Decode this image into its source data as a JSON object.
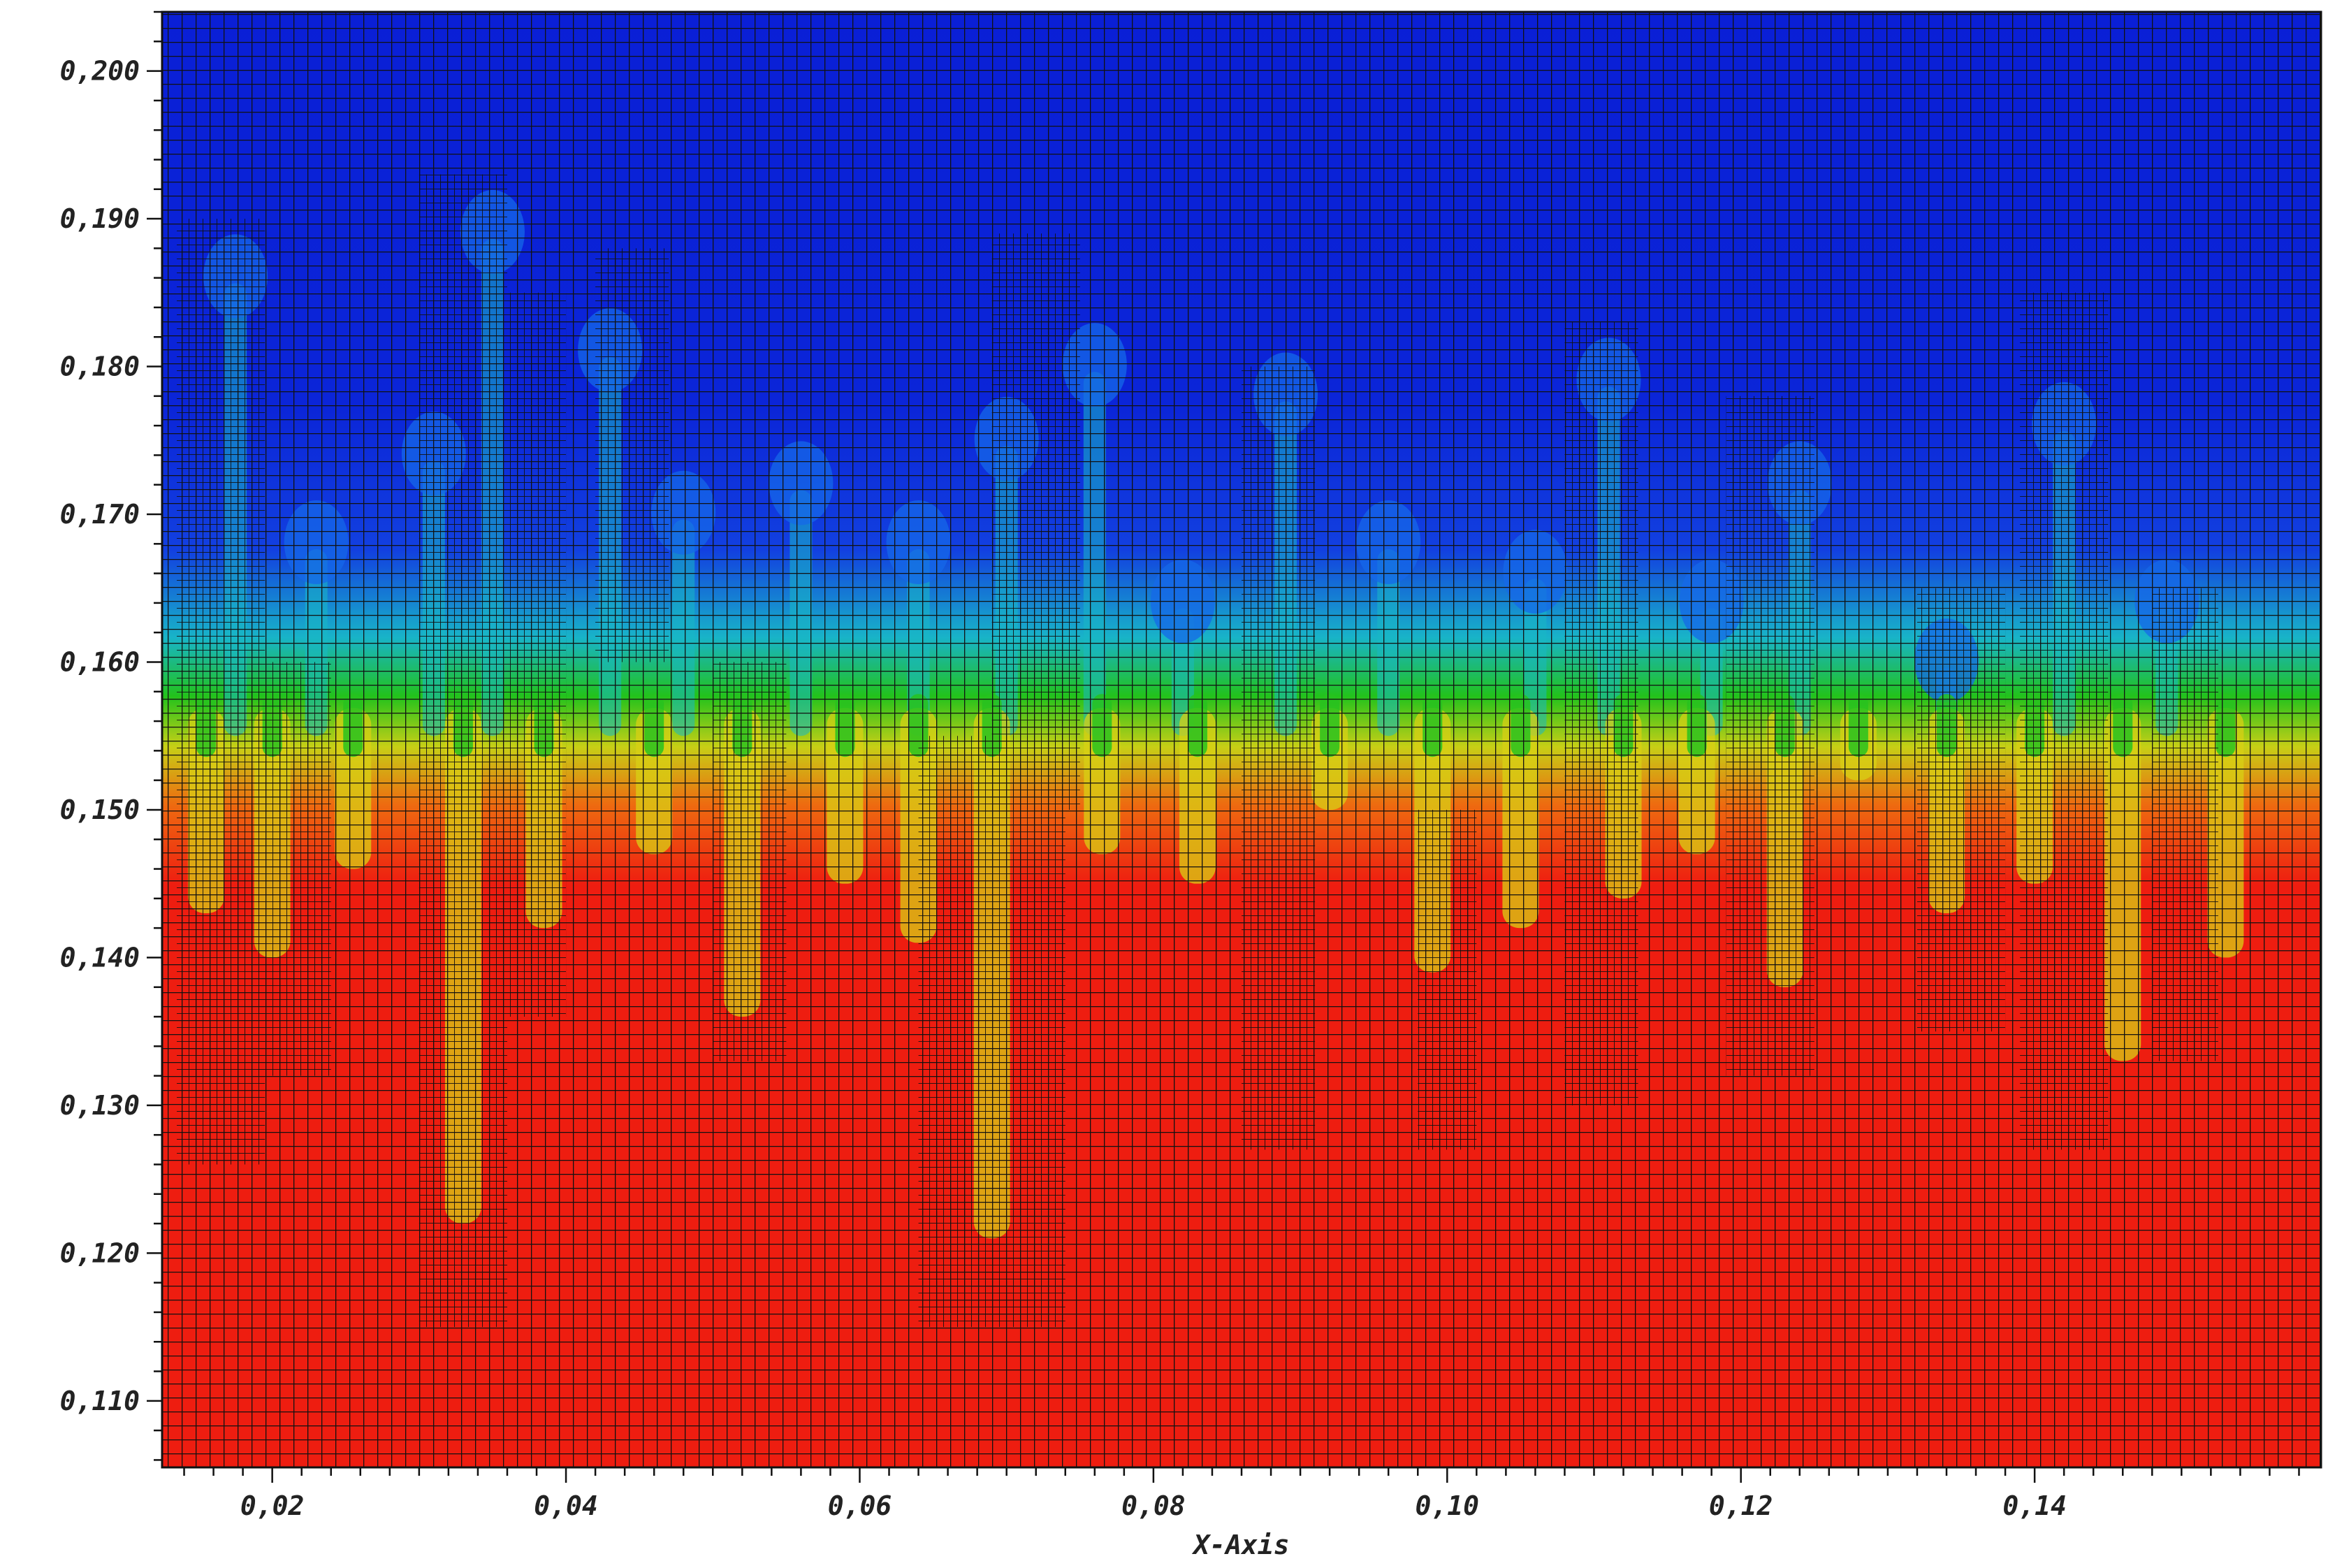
{
  "chart_data": {
    "type": "heatmap",
    "title": "",
    "xlabel": "X-Axis",
    "ylabel": "",
    "xlim": [
      0.0125,
      0.1595
    ],
    "ylim": [
      0.1055,
      0.204
    ],
    "x_ticks": [
      {
        "value": 0.02,
        "label": "0,02"
      },
      {
        "value": 0.04,
        "label": "0,04"
      },
      {
        "value": 0.06,
        "label": "0,06"
      },
      {
        "value": 0.08,
        "label": "0,08"
      },
      {
        "value": 0.1,
        "label": "0,10"
      },
      {
        "value": 0.12,
        "label": "0,12"
      },
      {
        "value": 0.14,
        "label": "0,14"
      }
    ],
    "y_ticks": [
      {
        "value": 0.11,
        "label": "0,110"
      },
      {
        "value": 0.12,
        "label": "0,120"
      },
      {
        "value": 0.13,
        "label": "0,130"
      },
      {
        "value": 0.14,
        "label": "0,140"
      },
      {
        "value": 0.15,
        "label": "0,150"
      },
      {
        "value": 0.16,
        "label": "0,160"
      },
      {
        "value": 0.17,
        "label": "0,170"
      },
      {
        "value": 0.18,
        "label": "0,180"
      },
      {
        "value": 0.19,
        "label": "0,190"
      },
      {
        "value": 0.2,
        "label": "0,200"
      }
    ],
    "grid": true,
    "legend": "none",
    "colormap": [
      "#0a1fd6",
      "#1166ee",
      "#19c7c7",
      "#22c21c",
      "#e3dc10",
      "#ee1d10"
    ],
    "field": {
      "interface_level": 0.155,
      "upper_region_color": "#0a1fd6",
      "lower_region_color": "#ee1d10",
      "plumes_rising": [
        {
          "x": 0.0175,
          "top": 0.188
        },
        {
          "x": 0.023,
          "top": 0.17
        },
        {
          "x": 0.031,
          "top": 0.176
        },
        {
          "x": 0.035,
          "top": 0.191
        },
        {
          "x": 0.043,
          "top": 0.183
        },
        {
          "x": 0.048,
          "top": 0.172
        },
        {
          "x": 0.056,
          "top": 0.174
        },
        {
          "x": 0.064,
          "top": 0.17
        },
        {
          "x": 0.07,
          "top": 0.177
        },
        {
          "x": 0.076,
          "top": 0.182
        },
        {
          "x": 0.082,
          "top": 0.166
        },
        {
          "x": 0.089,
          "top": 0.18
        },
        {
          "x": 0.096,
          "top": 0.17
        },
        {
          "x": 0.106,
          "top": 0.168
        },
        {
          "x": 0.111,
          "top": 0.181
        },
        {
          "x": 0.118,
          "top": 0.166
        },
        {
          "x": 0.124,
          "top": 0.174
        },
        {
          "x": 0.134,
          "top": 0.162
        },
        {
          "x": 0.142,
          "top": 0.178
        },
        {
          "x": 0.149,
          "top": 0.166
        }
      ],
      "fingers_sinking": [
        {
          "x": 0.0155,
          "bottom": 0.143
        },
        {
          "x": 0.02,
          "bottom": 0.14
        },
        {
          "x": 0.0255,
          "bottom": 0.146
        },
        {
          "x": 0.033,
          "bottom": 0.122
        },
        {
          "x": 0.0385,
          "bottom": 0.142
        },
        {
          "x": 0.046,
          "bottom": 0.147
        },
        {
          "x": 0.052,
          "bottom": 0.136
        },
        {
          "x": 0.059,
          "bottom": 0.145
        },
        {
          "x": 0.064,
          "bottom": 0.141
        },
        {
          "x": 0.069,
          "bottom": 0.121
        },
        {
          "x": 0.0765,
          "bottom": 0.147
        },
        {
          "x": 0.083,
          "bottom": 0.145
        },
        {
          "x": 0.092,
          "bottom": 0.15
        },
        {
          "x": 0.099,
          "bottom": 0.139
        },
        {
          "x": 0.105,
          "bottom": 0.142
        },
        {
          "x": 0.112,
          "bottom": 0.144
        },
        {
          "x": 0.117,
          "bottom": 0.147
        },
        {
          "x": 0.123,
          "bottom": 0.138
        },
        {
          "x": 0.128,
          "bottom": 0.152
        },
        {
          "x": 0.134,
          "bottom": 0.143
        },
        {
          "x": 0.14,
          "bottom": 0.145
        },
        {
          "x": 0.146,
          "bottom": 0.133
        },
        {
          "x": 0.153,
          "bottom": 0.14
        }
      ],
      "mesh_refinement": [
        {
          "x": [
            0.0135,
            0.0195
          ],
          "y": [
            0.126,
            0.19
          ]
        },
        {
          "x": [
            0.019,
            0.024
          ],
          "y": [
            0.132,
            0.16
          ]
        },
        {
          "x": [
            0.03,
            0.036
          ],
          "y": [
            0.115,
            0.193
          ]
        },
        {
          "x": [
            0.036,
            0.04
          ],
          "y": [
            0.136,
            0.185
          ]
        },
        {
          "x": [
            0.042,
            0.047
          ],
          "y": [
            0.16,
            0.188
          ]
        },
        {
          "x": [
            0.05,
            0.055
          ],
          "y": [
            0.133,
            0.16
          ]
        },
        {
          "x": [
            0.064,
            0.074
          ],
          "y": [
            0.115,
            0.155
          ]
        },
        {
          "x": [
            0.069,
            0.075
          ],
          "y": [
            0.15,
            0.189
          ]
        },
        {
          "x": [
            0.086,
            0.091
          ],
          "y": [
            0.127,
            0.18
          ]
        },
        {
          "x": [
            0.098,
            0.102
          ],
          "y": [
            0.127,
            0.15
          ]
        },
        {
          "x": [
            0.108,
            0.113
          ],
          "y": [
            0.13,
            0.183
          ]
        },
        {
          "x": [
            0.119,
            0.125
          ],
          "y": [
            0.132,
            0.178
          ]
        },
        {
          "x": [
            0.132,
            0.138
          ],
          "y": [
            0.135,
            0.165
          ]
        },
        {
          "x": [
            0.139,
            0.145
          ],
          "y": [
            0.127,
            0.185
          ]
        },
        {
          "x": [
            0.148,
            0.1525
          ],
          "y": [
            0.133,
            0.165
          ]
        }
      ]
    }
  }
}
